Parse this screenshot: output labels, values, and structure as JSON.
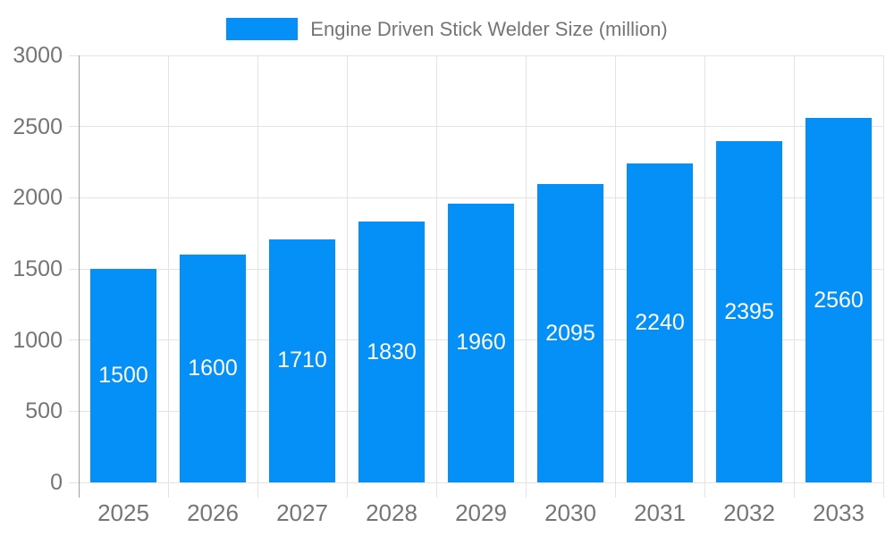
{
  "chart_data": {
    "type": "bar",
    "title": "Engine Driven Stick Welder Size (million)",
    "legend_position": "top",
    "categories": [
      "2025",
      "2026",
      "2027",
      "2028",
      "2029",
      "2030",
      "2031",
      "2032",
      "2033"
    ],
    "series": [
      {
        "name": "Engine Driven Stick Welder Size (million)",
        "values": [
          1500,
          1600,
          1710,
          1830,
          1960,
          2095,
          2240,
          2395,
          2560
        ]
      }
    ],
    "bar_labels": [
      "1500",
      "1600",
      "1710",
      "1830",
      "1960",
      "2095",
      "2240",
      "2395",
      "2560"
    ],
    "xlabel": "",
    "ylabel": "",
    "ylim": [
      0,
      3000
    ],
    "yticks": [
      0,
      500,
      1000,
      1500,
      2000,
      2500,
      3000
    ],
    "grid": "on"
  },
  "colors": {
    "bar": "#0590f8",
    "grid_line": "#e3e3e3",
    "axis_line": "#9e9e9e",
    "axis_text": "#757575",
    "bar_label_text": "#ffffff",
    "background": "#ffffff"
  }
}
